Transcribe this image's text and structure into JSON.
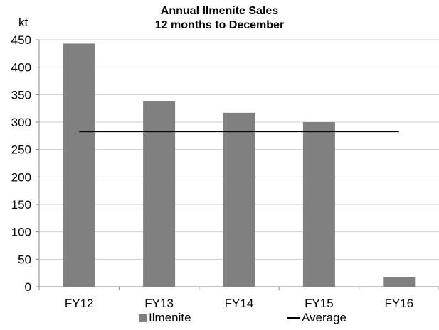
{
  "chart_data": {
    "type": "bar",
    "title": "Annual Ilmenite Sales",
    "subtitle": "12 months to December",
    "ylabel": "kt",
    "xlabel": "",
    "categories": [
      "FY12",
      "FY13",
      "FY14",
      "FY15",
      "FY16"
    ],
    "series": [
      {
        "name": "Ilmenite",
        "type": "bar",
        "color": "#808080",
        "values": [
          443,
          338,
          317,
          300,
          18
        ]
      },
      {
        "name": "Average",
        "type": "line",
        "color": "#000000",
        "values": [
          283,
          283,
          283,
          283,
          283
        ]
      }
    ],
    "ylim": [
      0,
      450
    ],
    "yticks": [
      0,
      50,
      100,
      150,
      200,
      250,
      300,
      350,
      400,
      450
    ],
    "grid": true,
    "legend_position": "bottom"
  }
}
